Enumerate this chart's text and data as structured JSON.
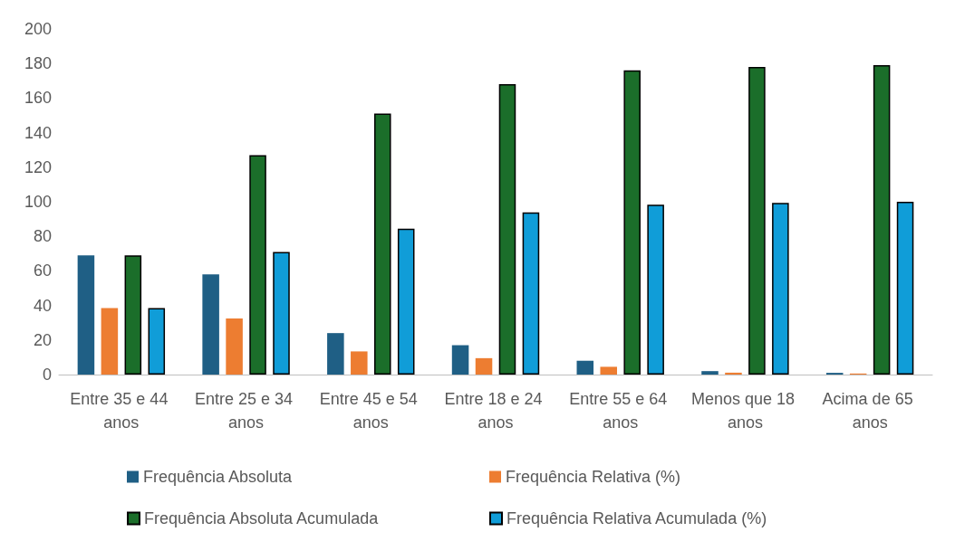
{
  "chart_data": {
    "type": "bar",
    "categories": [
      "Entre 35 e 44 anos",
      "Entre 25 e 34 anos",
      "Entre 45 e 54 anos",
      "Entre 18 e 24 anos",
      "Entre 55 e 64 anos",
      "Menos que 18 anos",
      "Acima de 65 anos"
    ],
    "series": [
      {
        "name": "Frequência Absoluta",
        "color": "#1f5f85",
        "values": [
          69,
          58,
          24,
          17,
          8,
          2,
          1
        ]
      },
      {
        "name": "Frequência Relativa (%)",
        "color": "#ed7d31",
        "values": [
          38.5,
          32.4,
          13.4,
          9.5,
          4.5,
          1.1,
          0.6
        ]
      },
      {
        "name": "Frequência Absoluta Acumulada",
        "color": "#1b6e2a",
        "values": [
          69,
          127,
          151,
          168,
          176,
          178,
          179
        ]
      },
      {
        "name": "Frequência Relativa Acumulada (%)",
        "color": "#109dd8",
        "values": [
          38.5,
          70.9,
          84.4,
          93.9,
          98.3,
          99.4,
          100
        ]
      }
    ],
    "ylim": [
      0,
      200
    ],
    "yticks": [
      0,
      20,
      40,
      60,
      80,
      100,
      120,
      140,
      160,
      180,
      200
    ],
    "grid": false,
    "legend": "bottom"
  }
}
